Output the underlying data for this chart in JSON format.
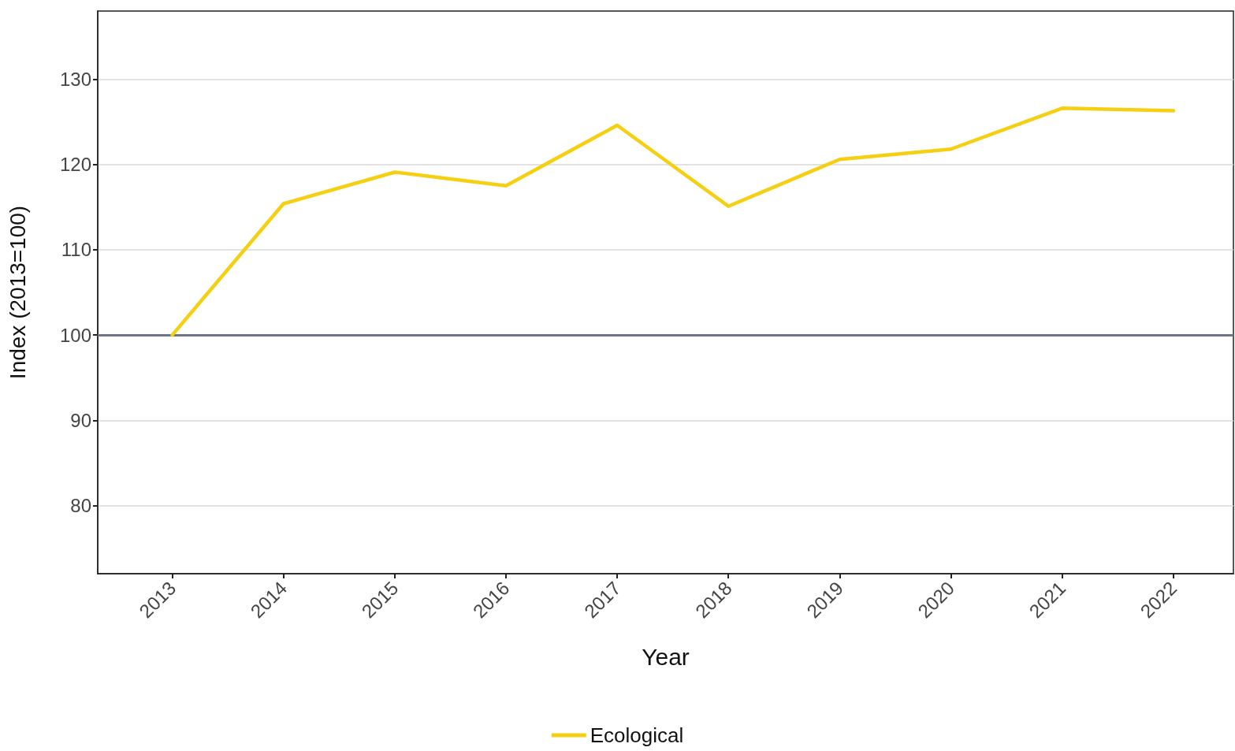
{
  "chart_data": {
    "type": "line",
    "xlabel": "Year",
    "ylabel": "Index (2013=100)",
    "x": [
      2013,
      2014,
      2015,
      2016,
      2017,
      2018,
      2019,
      2020,
      2021,
      2022
    ],
    "series": [
      {
        "name": "Ecological",
        "color": "#f5cf12",
        "values": [
          100,
          115.4,
          119.1,
          117.5,
          124.6,
          115.1,
          120.6,
          121.8,
          126.6,
          126.3
        ]
      }
    ],
    "xlim": [
      2012.33,
      2022.54
    ],
    "xticks": [
      2013,
      2014,
      2015,
      2016,
      2017,
      2018,
      2019,
      2020,
      2021,
      2022
    ],
    "ylim": [
      72,
      138
    ],
    "yticks": [
      80,
      90,
      100,
      110,
      120,
      130
    ],
    "ref_lines": [
      {
        "axis": "y",
        "value": 100,
        "color": "#6b7689"
      }
    ],
    "grid": "y",
    "legend": "bottom",
    "marker": "none",
    "line_style": "solid"
  }
}
